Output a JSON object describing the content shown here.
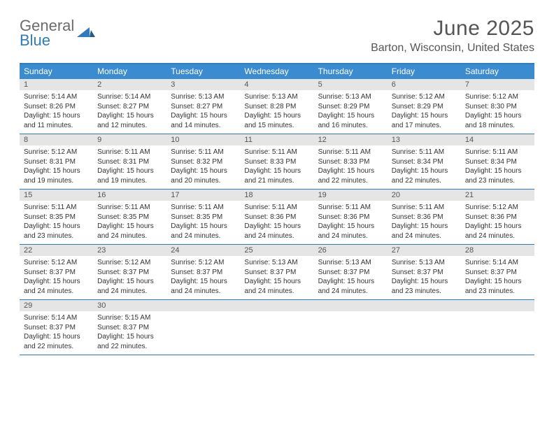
{
  "brand": {
    "part1": "General",
    "part2": "Blue"
  },
  "title": "June 2025",
  "location": "Barton, Wisconsin, United States",
  "colors": {
    "accent": "#2f7ac0",
    "header_bg": "#3b8bd1",
    "daynum_bg": "#e5e5e5",
    "text": "#333333",
    "muted": "#555555"
  },
  "weekdays": [
    "Sunday",
    "Monday",
    "Tuesday",
    "Wednesday",
    "Thursday",
    "Friday",
    "Saturday"
  ],
  "weeks": [
    [
      {
        "n": "1",
        "sr": "Sunrise: 5:14 AM",
        "ss": "Sunset: 8:26 PM",
        "dl": "Daylight: 15 hours and 11 minutes."
      },
      {
        "n": "2",
        "sr": "Sunrise: 5:14 AM",
        "ss": "Sunset: 8:27 PM",
        "dl": "Daylight: 15 hours and 12 minutes."
      },
      {
        "n": "3",
        "sr": "Sunrise: 5:13 AM",
        "ss": "Sunset: 8:27 PM",
        "dl": "Daylight: 15 hours and 14 minutes."
      },
      {
        "n": "4",
        "sr": "Sunrise: 5:13 AM",
        "ss": "Sunset: 8:28 PM",
        "dl": "Daylight: 15 hours and 15 minutes."
      },
      {
        "n": "5",
        "sr": "Sunrise: 5:13 AM",
        "ss": "Sunset: 8:29 PM",
        "dl": "Daylight: 15 hours and 16 minutes."
      },
      {
        "n": "6",
        "sr": "Sunrise: 5:12 AM",
        "ss": "Sunset: 8:29 PM",
        "dl": "Daylight: 15 hours and 17 minutes."
      },
      {
        "n": "7",
        "sr": "Sunrise: 5:12 AM",
        "ss": "Sunset: 8:30 PM",
        "dl": "Daylight: 15 hours and 18 minutes."
      }
    ],
    [
      {
        "n": "8",
        "sr": "Sunrise: 5:12 AM",
        "ss": "Sunset: 8:31 PM",
        "dl": "Daylight: 15 hours and 19 minutes."
      },
      {
        "n": "9",
        "sr": "Sunrise: 5:11 AM",
        "ss": "Sunset: 8:31 PM",
        "dl": "Daylight: 15 hours and 19 minutes."
      },
      {
        "n": "10",
        "sr": "Sunrise: 5:11 AM",
        "ss": "Sunset: 8:32 PM",
        "dl": "Daylight: 15 hours and 20 minutes."
      },
      {
        "n": "11",
        "sr": "Sunrise: 5:11 AM",
        "ss": "Sunset: 8:33 PM",
        "dl": "Daylight: 15 hours and 21 minutes."
      },
      {
        "n": "12",
        "sr": "Sunrise: 5:11 AM",
        "ss": "Sunset: 8:33 PM",
        "dl": "Daylight: 15 hours and 22 minutes."
      },
      {
        "n": "13",
        "sr": "Sunrise: 5:11 AM",
        "ss": "Sunset: 8:34 PM",
        "dl": "Daylight: 15 hours and 22 minutes."
      },
      {
        "n": "14",
        "sr": "Sunrise: 5:11 AM",
        "ss": "Sunset: 8:34 PM",
        "dl": "Daylight: 15 hours and 23 minutes."
      }
    ],
    [
      {
        "n": "15",
        "sr": "Sunrise: 5:11 AM",
        "ss": "Sunset: 8:35 PM",
        "dl": "Daylight: 15 hours and 23 minutes."
      },
      {
        "n": "16",
        "sr": "Sunrise: 5:11 AM",
        "ss": "Sunset: 8:35 PM",
        "dl": "Daylight: 15 hours and 24 minutes."
      },
      {
        "n": "17",
        "sr": "Sunrise: 5:11 AM",
        "ss": "Sunset: 8:35 PM",
        "dl": "Daylight: 15 hours and 24 minutes."
      },
      {
        "n": "18",
        "sr": "Sunrise: 5:11 AM",
        "ss": "Sunset: 8:36 PM",
        "dl": "Daylight: 15 hours and 24 minutes."
      },
      {
        "n": "19",
        "sr": "Sunrise: 5:11 AM",
        "ss": "Sunset: 8:36 PM",
        "dl": "Daylight: 15 hours and 24 minutes."
      },
      {
        "n": "20",
        "sr": "Sunrise: 5:11 AM",
        "ss": "Sunset: 8:36 PM",
        "dl": "Daylight: 15 hours and 24 minutes."
      },
      {
        "n": "21",
        "sr": "Sunrise: 5:12 AM",
        "ss": "Sunset: 8:36 PM",
        "dl": "Daylight: 15 hours and 24 minutes."
      }
    ],
    [
      {
        "n": "22",
        "sr": "Sunrise: 5:12 AM",
        "ss": "Sunset: 8:37 PM",
        "dl": "Daylight: 15 hours and 24 minutes."
      },
      {
        "n": "23",
        "sr": "Sunrise: 5:12 AM",
        "ss": "Sunset: 8:37 PM",
        "dl": "Daylight: 15 hours and 24 minutes."
      },
      {
        "n": "24",
        "sr": "Sunrise: 5:12 AM",
        "ss": "Sunset: 8:37 PM",
        "dl": "Daylight: 15 hours and 24 minutes."
      },
      {
        "n": "25",
        "sr": "Sunrise: 5:13 AM",
        "ss": "Sunset: 8:37 PM",
        "dl": "Daylight: 15 hours and 24 minutes."
      },
      {
        "n": "26",
        "sr": "Sunrise: 5:13 AM",
        "ss": "Sunset: 8:37 PM",
        "dl": "Daylight: 15 hours and 24 minutes."
      },
      {
        "n": "27",
        "sr": "Sunrise: 5:13 AM",
        "ss": "Sunset: 8:37 PM",
        "dl": "Daylight: 15 hours and 23 minutes."
      },
      {
        "n": "28",
        "sr": "Sunrise: 5:14 AM",
        "ss": "Sunset: 8:37 PM",
        "dl": "Daylight: 15 hours and 23 minutes."
      }
    ],
    [
      {
        "n": "29",
        "sr": "Sunrise: 5:14 AM",
        "ss": "Sunset: 8:37 PM",
        "dl": "Daylight: 15 hours and 22 minutes."
      },
      {
        "n": "30",
        "sr": "Sunrise: 5:15 AM",
        "ss": "Sunset: 8:37 PM",
        "dl": "Daylight: 15 hours and 22 minutes."
      },
      {
        "n": "",
        "sr": "",
        "ss": "",
        "dl": ""
      },
      {
        "n": "",
        "sr": "",
        "ss": "",
        "dl": ""
      },
      {
        "n": "",
        "sr": "",
        "ss": "",
        "dl": ""
      },
      {
        "n": "",
        "sr": "",
        "ss": "",
        "dl": ""
      },
      {
        "n": "",
        "sr": "",
        "ss": "",
        "dl": ""
      }
    ]
  ]
}
